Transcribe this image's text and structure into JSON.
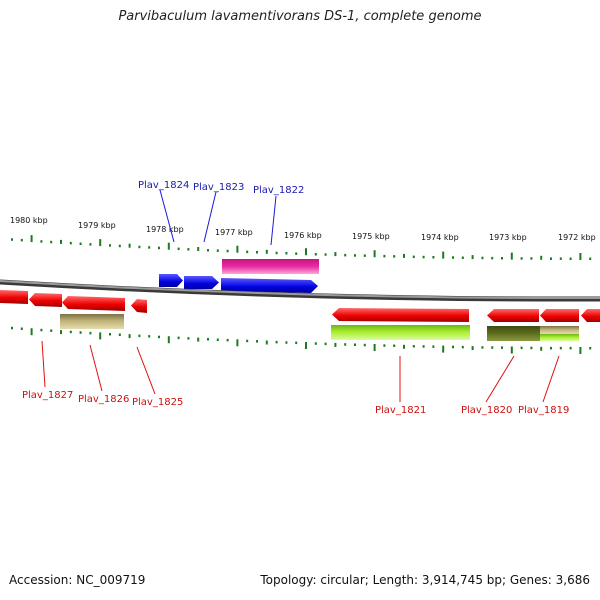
{
  "title": "Parvibaculum lavamentivorans DS-1, complete genome",
  "accession": "Accession: NC_009719",
  "info": "Topology: circular; Length: 3,914,745 bp; Genes: 3,686",
  "ruler_labels": [
    "1980 kbp",
    "1979 kbp",
    "1978 kbp",
    "1977 kbp",
    "1976 kbp",
    "1975 kbp",
    "1974 kbp",
    "1973 kbp",
    "1972 kbp"
  ],
  "genes_forward": [
    {
      "name": "Plav_1824",
      "color": "#1a1adc"
    },
    {
      "name": "Plav_1823",
      "color": "#1a1adc"
    },
    {
      "name": "Plav_1822",
      "color": "#1a1adc"
    }
  ],
  "genes_reverse": [
    {
      "name": "Plav_1827",
      "color": "#e01010"
    },
    {
      "name": "Plav_1826",
      "color": "#e01010"
    },
    {
      "name": "Plav_1825",
      "color": "#e01010"
    },
    {
      "name": "Plav_1821",
      "color": "#e01010"
    },
    {
      "name": "Plav_1820",
      "color": "#e01010"
    },
    {
      "name": "Plav_1819",
      "color": "#e01010"
    }
  ],
  "colors": {
    "forward_gene": "#1a1adc",
    "reverse_gene": "#e01010",
    "pink_feature": "#e0249a",
    "khaki_feature": "#b9ae72",
    "lime_feature": "#a6ea2a",
    "olive_feature": "#5c6e1c",
    "ruler_tick": "#1f7a1f",
    "backbone": "#888888"
  }
}
